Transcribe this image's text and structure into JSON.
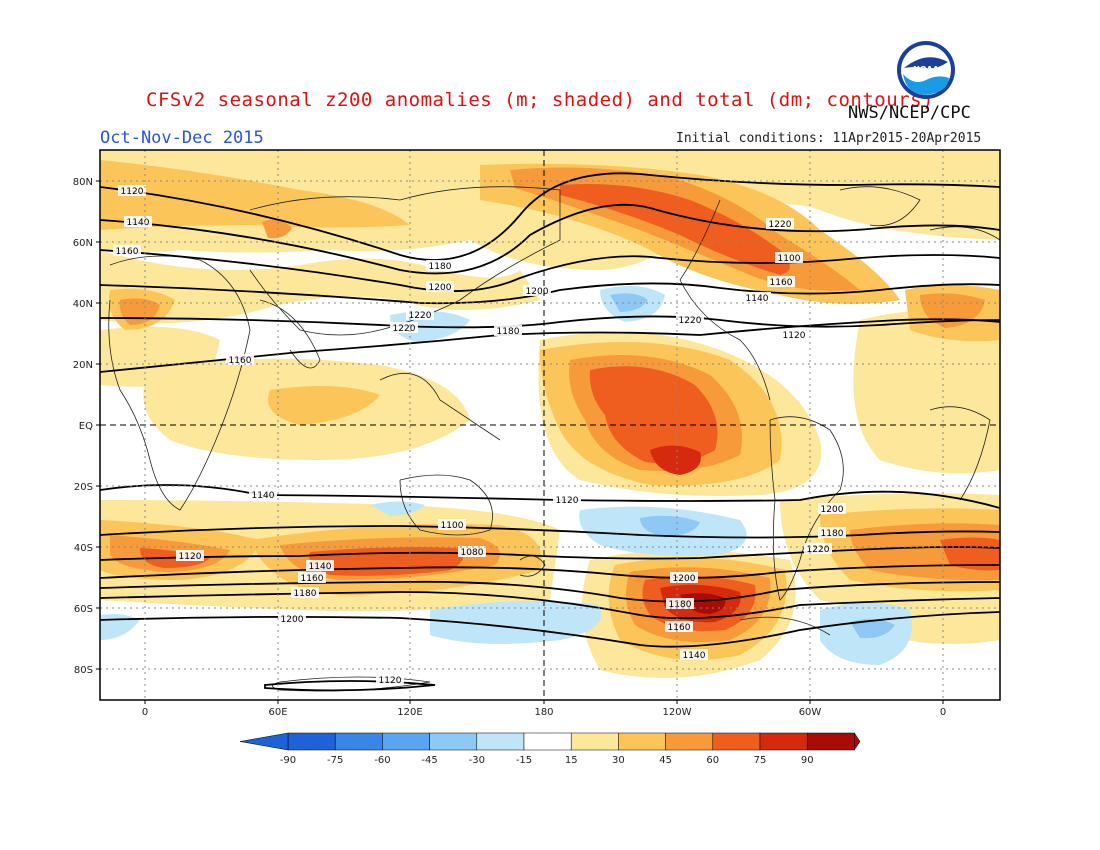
{
  "title": "CFSv2 seasonal z200 anomalies (m; shaded) and total (dm; contours)",
  "period": "Oct-Nov-Dec 2015",
  "agency": "NWS/NCEP/CPC",
  "initial_conditions": "Initial conditions: 11Apr2015-20Apr2015",
  "logo_text": "NOAA",
  "lat_labels": [
    "80N",
    "60N",
    "40N",
    "20N",
    "EQ",
    "20S",
    "40S",
    "60S",
    "80S"
  ],
  "lon_labels": [
    "0",
    "60E",
    "120E",
    "180",
    "120W",
    "60W",
    "0"
  ],
  "colorbar": {
    "ticks": [
      "-90",
      "-75",
      "-60",
      "-45",
      "-30",
      "-15",
      "15",
      "30",
      "45",
      "60",
      "75",
      "90"
    ],
    "colors": [
      "#1f62d8",
      "#3a86e6",
      "#5aa5ef",
      "#8ec8f5",
      "#bfe6f8",
      "#ffffff",
      "#fde79a",
      "#fcc55a",
      "#f79a3a",
      "#ef5d1f",
      "#d52a0e",
      "#a80d05"
    ]
  },
  "contour_labels": [
    "1120",
    "1140",
    "1160",
    "1180",
    "1200",
    "1220",
    "1220",
    "1200",
    "1180",
    "1160",
    "1140",
    "1120",
    "1100",
    "1080",
    "1120",
    "1140",
    "1160",
    "1180",
    "1200",
    "1220",
    "1160",
    "1140",
    "1120",
    "1100",
    "1220",
    "1200",
    "1180",
    "1220",
    "1200",
    "1180",
    "1160",
    "1140",
    "1120",
    "1100"
  ]
}
